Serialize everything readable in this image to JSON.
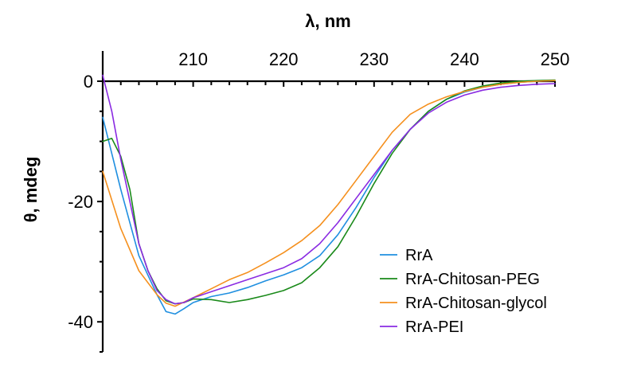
{
  "chart_data": {
    "type": "line",
    "xlabel": "λ, nm",
    "ylabel": "θ, mdeg",
    "xlim": [
      200,
      250
    ],
    "ylim": [
      -45,
      0
    ],
    "x_ticks": [
      210,
      220,
      230,
      240,
      250
    ],
    "y_ticks": [
      0,
      -20,
      -40
    ],
    "x_axis_position": "top",
    "grid": false,
    "legend_position": "bottom-right",
    "series": [
      {
        "name": "RrA",
        "color": "#1f8fe0",
        "x": [
          200,
          202,
          204,
          206,
          207,
          208,
          209,
          210,
          212,
          214,
          216,
          218,
          220,
          222,
          224,
          226,
          228,
          230,
          232,
          234,
          236,
          238,
          240,
          242,
          244,
          246,
          248,
          250
        ],
        "y": [
          -6.0,
          -18.0,
          -29.0,
          -35.5,
          -38.3,
          -38.7,
          -37.8,
          -36.8,
          -35.8,
          -35.2,
          -34.3,
          -33.2,
          -32.2,
          -31.0,
          -29.0,
          -25.5,
          -21.0,
          -16.0,
          -11.5,
          -8.0,
          -5.0,
          -3.0,
          -1.8,
          -1.0,
          -0.5,
          -0.2,
          0.0,
          0.1
        ]
      },
      {
        "name": "RrA-Chitosan-PEG",
        "color": "#1a8a1a",
        "x": [
          200,
          201,
          202,
          203,
          204,
          205,
          206,
          207,
          208,
          209,
          210,
          212,
          214,
          216,
          218,
          220,
          222,
          224,
          226,
          228,
          230,
          232,
          234,
          236,
          238,
          240,
          242,
          244,
          246,
          248,
          250
        ],
        "y": [
          -10.0,
          -9.5,
          -12.5,
          -18.0,
          -27.0,
          -31.5,
          -34.5,
          -36.5,
          -37.0,
          -36.8,
          -36.2,
          -36.3,
          -36.8,
          -36.3,
          -35.6,
          -34.8,
          -33.5,
          -31.0,
          -27.5,
          -22.5,
          -17.0,
          -12.0,
          -8.0,
          -5.0,
          -3.0,
          -1.6,
          -0.8,
          -0.3,
          0.0,
          0.1,
          0.2
        ]
      },
      {
        "name": "RrA-Chitosan-glycol",
        "color": "#f5901e",
        "x": [
          200,
          202,
          204,
          206,
          207,
          208,
          210,
          212,
          214,
          216,
          218,
          220,
          222,
          224,
          226,
          228,
          230,
          232,
          234,
          236,
          238,
          240,
          242,
          244,
          246,
          248,
          250
        ],
        "y": [
          -15.0,
          -24.5,
          -31.5,
          -35.5,
          -36.9,
          -37.4,
          -36.0,
          -34.5,
          -33.0,
          -31.8,
          -30.2,
          -28.5,
          -26.5,
          -24.0,
          -20.5,
          -16.5,
          -12.5,
          -8.5,
          -5.5,
          -3.8,
          -2.6,
          -1.7,
          -1.0,
          -0.5,
          -0.2,
          0.0,
          0.1
        ]
      },
      {
        "name": "RrA-PEI",
        "color": "#8a2be2",
        "x": [
          200,
          201,
          202,
          203,
          204,
          205,
          206,
          207,
          208,
          209,
          210,
          212,
          214,
          216,
          218,
          220,
          222,
          224,
          226,
          228,
          230,
          232,
          234,
          236,
          238,
          240,
          242,
          244,
          246,
          248,
          250
        ],
        "y": [
          1.0,
          -5.0,
          -13.0,
          -20.0,
          -27.0,
          -31.5,
          -34.8,
          -36.3,
          -37.0,
          -36.8,
          -36.0,
          -35.0,
          -34.0,
          -33.0,
          -32.0,
          -31.0,
          -29.5,
          -27.0,
          -23.5,
          -19.5,
          -15.5,
          -11.5,
          -8.0,
          -5.3,
          -3.5,
          -2.3,
          -1.5,
          -1.0,
          -0.7,
          -0.5,
          -0.4
        ]
      }
    ]
  }
}
